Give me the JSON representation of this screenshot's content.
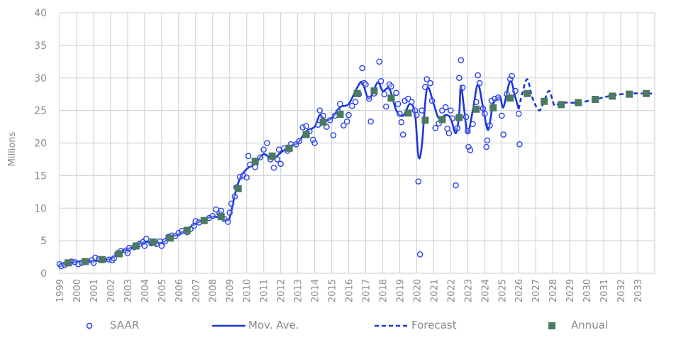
{
  "chart_data": {
    "type": "line",
    "ylabel": "Millions",
    "xlabel": "",
    "ylim": [
      0,
      40
    ],
    "yticks": [
      "0",
      "5",
      "10",
      "15",
      "20",
      "25",
      "30",
      "35",
      "40"
    ],
    "xlim": [
      1999,
      2034
    ],
    "xticks": [
      "1999",
      "2000",
      "2001",
      "2002",
      "2003",
      "2004",
      "2005",
      "2006",
      "2007",
      "2008",
      "2009",
      "2010",
      "2011",
      "2012",
      "2013",
      "2014",
      "2015",
      "2016",
      "2017",
      "2018",
      "2019",
      "2020",
      "2021",
      "2022",
      "2023",
      "2024",
      "2025",
      "2026",
      "2027",
      "2028",
      "2029",
      "2030",
      "2031",
      "2032",
      "2033"
    ],
    "grid": true,
    "legend_position": "bottom",
    "colors": {
      "line": "#1c35dc",
      "saar": "#2b44e6",
      "annual": "#4b7a60",
      "grid": "#d4d6da"
    },
    "series": [
      {
        "name": "SAAR",
        "kind": "scatter-open-circle",
        "points": [
          [
            1999.0,
            1.4
          ],
          [
            1999.1,
            1.1
          ],
          [
            1999.3,
            1.3
          ],
          [
            1999.5,
            1.6
          ],
          [
            1999.7,
            1.8
          ],
          [
            1999.9,
            1.7
          ],
          [
            2000.1,
            1.4
          ],
          [
            2000.3,
            1.6
          ],
          [
            2000.6,
            1.8
          ],
          [
            2000.9,
            2.0
          ],
          [
            2001.0,
            1.6
          ],
          [
            2001.1,
            2.4
          ],
          [
            2001.3,
            2.2
          ],
          [
            2001.6,
            2.1
          ],
          [
            2001.9,
            2.1
          ],
          [
            2002.1,
            2.0
          ],
          [
            2002.2,
            2.3
          ],
          [
            2002.4,
            3.0
          ],
          [
            2002.6,
            3.4
          ],
          [
            2002.9,
            3.5
          ],
          [
            2003.0,
            3.1
          ],
          [
            2003.1,
            3.9
          ],
          [
            2003.4,
            4.0
          ],
          [
            2003.7,
            4.5
          ],
          [
            2003.9,
            4.8
          ],
          [
            2004.0,
            4.2
          ],
          [
            2004.1,
            5.3
          ],
          [
            2004.4,
            4.6
          ],
          [
            2004.7,
            4.5
          ],
          [
            2004.9,
            4.9
          ],
          [
            2005.0,
            4.2
          ],
          [
            2005.2,
            4.9
          ],
          [
            2005.4,
            5.6
          ],
          [
            2005.6,
            5.8
          ],
          [
            2005.8,
            5.7
          ],
          [
            2006.0,
            6.2
          ],
          [
            2006.2,
            6.5
          ],
          [
            2006.5,
            6.3
          ],
          [
            2006.7,
            6.8
          ],
          [
            2006.9,
            7.3
          ],
          [
            2007.0,
            8.0
          ],
          [
            2007.2,
            7.8
          ],
          [
            2007.5,
            8.1
          ],
          [
            2007.8,
            8.5
          ],
          [
            2008.0,
            8.8
          ],
          [
            2008.2,
            9.8
          ],
          [
            2008.4,
            9.2
          ],
          [
            2008.5,
            9.6
          ],
          [
            2008.7,
            8.3
          ],
          [
            2008.9,
            7.9
          ],
          [
            2009.0,
            9.3
          ],
          [
            2009.1,
            10.7
          ],
          [
            2009.3,
            11.8
          ],
          [
            2009.4,
            13.2
          ],
          [
            2009.6,
            14.8
          ],
          [
            2009.8,
            15.0
          ],
          [
            2010.0,
            14.7
          ],
          [
            2010.1,
            18.0
          ],
          [
            2010.2,
            16.7
          ],
          [
            2010.5,
            16.3
          ],
          [
            2010.8,
            17.8
          ],
          [
            2011.0,
            19.0
          ],
          [
            2011.2,
            20.0
          ],
          [
            2011.4,
            17.5
          ],
          [
            2011.6,
            16.2
          ],
          [
            2011.8,
            17.5
          ],
          [
            2011.9,
            19.0
          ],
          [
            2012.0,
            16.8
          ],
          [
            2012.2,
            19.2
          ],
          [
            2012.4,
            18.8
          ],
          [
            2012.6,
            19.8
          ],
          [
            2012.9,
            19.8
          ],
          [
            2013.1,
            20.3
          ],
          [
            2013.3,
            22.4
          ],
          [
            2013.5,
            22.6
          ],
          [
            2013.7,
            21.8
          ],
          [
            2013.9,
            20.5
          ],
          [
            2014.0,
            20.0
          ],
          [
            2014.2,
            22.8
          ],
          [
            2014.3,
            25.0
          ],
          [
            2014.5,
            24.2
          ],
          [
            2014.7,
            22.5
          ],
          [
            2014.9,
            23.5
          ],
          [
            2015.1,
            21.2
          ],
          [
            2015.2,
            24.2
          ],
          [
            2015.4,
            24.8
          ],
          [
            2015.5,
            26.0
          ],
          [
            2015.7,
            22.7
          ],
          [
            2015.9,
            23.3
          ],
          [
            2016.0,
            24.3
          ],
          [
            2016.2,
            25.7
          ],
          [
            2016.4,
            26.3
          ],
          [
            2016.6,
            27.5
          ],
          [
            2016.8,
            31.5
          ],
          [
            2016.9,
            29.2
          ],
          [
            2017.0,
            29.0
          ],
          [
            2017.2,
            26.8
          ],
          [
            2017.3,
            23.3
          ],
          [
            2017.5,
            27.6
          ],
          [
            2017.8,
            32.5
          ],
          [
            2017.9,
            29.5
          ],
          [
            2018.1,
            27.5
          ],
          [
            2018.2,
            25.6
          ],
          [
            2018.4,
            29.0
          ],
          [
            2018.5,
            28.7
          ],
          [
            2018.8,
            27.7
          ],
          [
            2018.9,
            26.0
          ],
          [
            2019.0,
            24.5
          ],
          [
            2019.1,
            23.2
          ],
          [
            2019.2,
            21.3
          ],
          [
            2019.3,
            26.5
          ],
          [
            2019.5,
            26.8
          ],
          [
            2019.7,
            26.3
          ],
          [
            2019.9,
            25.0
          ],
          [
            2020.0,
            24.3
          ],
          [
            2020.1,
            14.1
          ],
          [
            2020.2,
            2.9
          ],
          [
            2020.3,
            25.0
          ],
          [
            2020.5,
            28.6
          ],
          [
            2020.6,
            29.8
          ],
          [
            2020.8,
            29.2
          ],
          [
            2020.9,
            26.5
          ],
          [
            2021.1,
            22.3
          ],
          [
            2021.3,
            23.0
          ],
          [
            2021.5,
            25.0
          ],
          [
            2021.7,
            25.5
          ],
          [
            2021.8,
            22.2
          ],
          [
            2021.9,
            21.5
          ],
          [
            2022.0,
            25.0
          ],
          [
            2022.1,
            23.8
          ],
          [
            2022.3,
            13.5
          ],
          [
            2022.4,
            22.3
          ],
          [
            2022.5,
            30.0
          ],
          [
            2022.6,
            32.7
          ],
          [
            2022.7,
            28.5
          ],
          [
            2022.9,
            24.0
          ],
          [
            2023.0,
            21.8
          ],
          [
            2023.05,
            19.4
          ],
          [
            2023.15,
            18.9
          ],
          [
            2023.3,
            22.9
          ],
          [
            2023.5,
            26.3
          ],
          [
            2023.6,
            30.4
          ],
          [
            2023.7,
            29.2
          ],
          [
            2023.9,
            25.3
          ],
          [
            2024.0,
            24.5
          ],
          [
            2024.1,
            19.4
          ],
          [
            2024.15,
            20.4
          ],
          [
            2024.3,
            22.7
          ],
          [
            2024.4,
            26.5
          ],
          [
            2024.6,
            26.8
          ],
          [
            2024.8,
            27.0
          ],
          [
            2025.0,
            24.2
          ],
          [
            2025.1,
            21.3
          ],
          [
            2025.3,
            27.5
          ],
          [
            2025.5,
            29.8
          ],
          [
            2025.6,
            30.3
          ],
          [
            2025.8,
            28.0
          ],
          [
            2026.0,
            24.5
          ],
          [
            2026.05,
            19.8
          ]
        ]
      },
      {
        "name": "Mov. Ave.",
        "kind": "line-solid",
        "points": [
          [
            1999.0,
            1.3
          ],
          [
            2000.0,
            1.8
          ],
          [
            2001.0,
            1.9
          ],
          [
            2002.0,
            2.2
          ],
          [
            2002.5,
            3.2
          ],
          [
            2003.0,
            3.7
          ],
          [
            2004.0,
            4.8
          ],
          [
            2005.0,
            4.7
          ],
          [
            2005.5,
            5.5
          ],
          [
            2006.0,
            6.0
          ],
          [
            2007.0,
            7.6
          ],
          [
            2008.0,
            8.7
          ],
          [
            2008.7,
            8.2
          ],
          [
            2009.0,
            8.5
          ],
          [
            2009.3,
            12.0
          ],
          [
            2009.6,
            14.5
          ],
          [
            2010.0,
            16.0
          ],
          [
            2010.5,
            16.8
          ],
          [
            2011.0,
            18.3
          ],
          [
            2011.5,
            17.5
          ],
          [
            2012.0,
            18.5
          ],
          [
            2012.5,
            19.5
          ],
          [
            2013.0,
            20.0
          ],
          [
            2013.5,
            21.8
          ],
          [
            2014.0,
            22.5
          ],
          [
            2014.3,
            24.3
          ],
          [
            2014.6,
            23.5
          ],
          [
            2015.0,
            23.8
          ],
          [
            2015.5,
            25.5
          ],
          [
            2016.0,
            26.0
          ],
          [
            2016.5,
            28.5
          ],
          [
            2016.8,
            29.3
          ],
          [
            2017.2,
            26.8
          ],
          [
            2017.7,
            29.3
          ],
          [
            2018.0,
            28.0
          ],
          [
            2018.4,
            28.3
          ],
          [
            2018.8,
            25.0
          ],
          [
            2019.2,
            24.2
          ],
          [
            2019.6,
            26.0
          ],
          [
            2019.9,
            24.5
          ],
          [
            2020.1,
            18.0
          ],
          [
            2020.3,
            19.5
          ],
          [
            2020.6,
            28.3
          ],
          [
            2021.0,
            26.0
          ],
          [
            2021.3,
            23.8
          ],
          [
            2021.7,
            24.3
          ],
          [
            2022.0,
            23.8
          ],
          [
            2022.3,
            21.5
          ],
          [
            2022.5,
            24.5
          ],
          [
            2022.6,
            28.8
          ],
          [
            2022.8,
            25.0
          ],
          [
            2023.0,
            21.5
          ],
          [
            2023.3,
            25.0
          ],
          [
            2023.6,
            29.0
          ],
          [
            2023.9,
            25.5
          ],
          [
            2024.2,
            22.0
          ],
          [
            2024.5,
            26.0
          ],
          [
            2024.9,
            27.0
          ],
          [
            2025.1,
            25.5
          ],
          [
            2025.5,
            29.5
          ],
          [
            2025.8,
            27.0
          ],
          [
            2026.0,
            25.2
          ]
        ]
      },
      {
        "name": "Forecast",
        "kind": "line-dashed",
        "points": [
          [
            2026.0,
            25.2
          ],
          [
            2026.2,
            27.5
          ],
          [
            2026.5,
            29.8
          ],
          [
            2026.8,
            27.0
          ],
          [
            2027.2,
            25.0
          ],
          [
            2027.5,
            26.5
          ],
          [
            2027.8,
            28.0
          ],
          [
            2028.1,
            25.8
          ],
          [
            2028.5,
            26.2
          ],
          [
            2029.5,
            26.2
          ],
          [
            2030.5,
            26.7
          ],
          [
            2031.5,
            27.3
          ],
          [
            2032.5,
            27.6
          ],
          [
            2033.5,
            27.6
          ],
          [
            2034.0,
            27.6
          ]
        ]
      },
      {
        "name": "Annual",
        "kind": "square-marker",
        "points": [
          [
            1999.5,
            1.6
          ],
          [
            2000.5,
            1.8
          ],
          [
            2001.5,
            2.1
          ],
          [
            2002.5,
            3.0
          ],
          [
            2003.5,
            4.2
          ],
          [
            2004.5,
            4.8
          ],
          [
            2005.5,
            5.4
          ],
          [
            2006.5,
            6.6
          ],
          [
            2007.5,
            8.1
          ],
          [
            2008.5,
            8.7
          ],
          [
            2009.5,
            13.0
          ],
          [
            2010.5,
            17.2
          ],
          [
            2011.5,
            18.0
          ],
          [
            2012.5,
            19.2
          ],
          [
            2013.5,
            21.3
          ],
          [
            2014.5,
            23.2
          ],
          [
            2015.5,
            24.4
          ],
          [
            2016.5,
            27.6
          ],
          [
            2017.5,
            28.0
          ],
          [
            2018.5,
            26.9
          ],
          [
            2019.5,
            24.6
          ],
          [
            2020.5,
            23.5
          ],
          [
            2021.5,
            23.6
          ],
          [
            2022.5,
            23.9
          ],
          [
            2023.5,
            25.2
          ],
          [
            2024.5,
            25.4
          ],
          [
            2025.5,
            26.9
          ],
          [
            2026.5,
            27.6
          ],
          [
            2027.5,
            26.4
          ],
          [
            2028.5,
            25.9
          ],
          [
            2029.5,
            26.2
          ],
          [
            2030.5,
            26.7
          ],
          [
            2031.5,
            27.2
          ],
          [
            2032.5,
            27.5
          ],
          [
            2033.5,
            27.6
          ]
        ]
      }
    ],
    "legend": [
      "SAAR",
      "Mov. Ave.",
      "Forecast",
      "Annual"
    ]
  }
}
